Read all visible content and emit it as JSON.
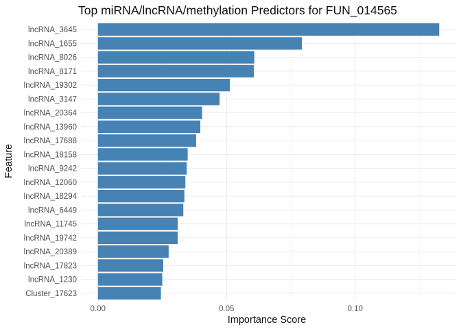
{
  "chart_data": {
    "type": "bar",
    "orientation": "horizontal",
    "title": "Top miRNA/lncRNA/methylation Predictors for FUN_014565",
    "xlabel": "Importance Score",
    "ylabel": "Feature",
    "categories": [
      "lncRNA_3645",
      "lncRNA_1655",
      "lncRNA_8026",
      "lncRNA_8171",
      "lncRNA_19302",
      "lncRNA_3147",
      "lncRNA_20364",
      "lncRNA_13960",
      "lncRNA_17688",
      "lncRNA_18158",
      "lncRNA_9242",
      "lncRNA_12060",
      "lncRNA_18294",
      "lncRNA_6449",
      "lncRNA_11745",
      "lncRNA_19742",
      "lncRNA_20389",
      "lncRNA_17823",
      "lncRNA_1230",
      "Cluster_17623"
    ],
    "values": [
      0.1327,
      0.0793,
      0.0608,
      0.0606,
      0.0513,
      0.0473,
      0.0405,
      0.0398,
      0.0382,
      0.0349,
      0.0345,
      0.034,
      0.0336,
      0.0332,
      0.031,
      0.031,
      0.0275,
      0.0254,
      0.025,
      0.0245
    ],
    "xticks": [
      0.0,
      0.05,
      0.1
    ],
    "xtick_labels": [
      "0.00",
      "0.05",
      "0.10"
    ],
    "xlim": [
      -0.0066,
      0.1393
    ],
    "bar_color": "#4682B4",
    "grid": true,
    "legend": "none"
  }
}
